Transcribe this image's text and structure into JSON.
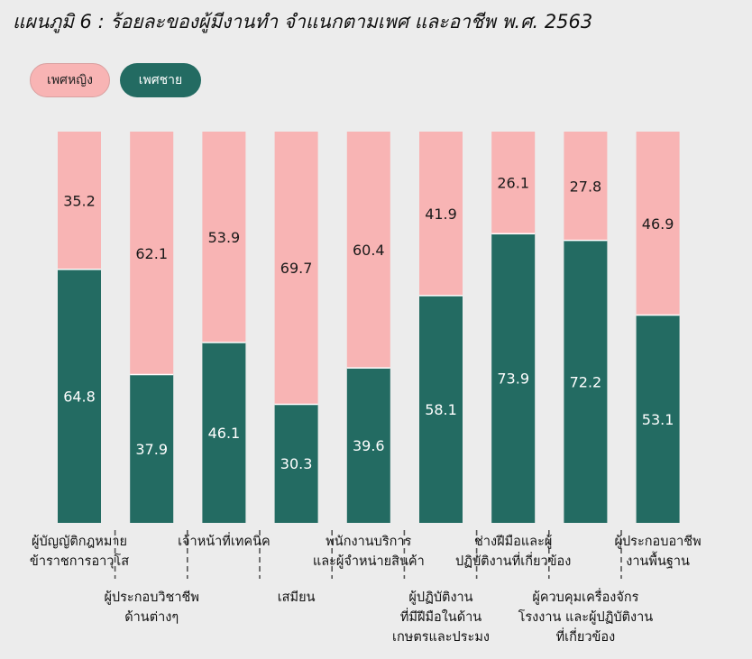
{
  "title": "แผนภูมิ 6 : ร้อยละของผู้มีงานทำ จำแนกตามเพศ และอาชีพ พ.ศ. 2563",
  "legend": {
    "female": "เพศหญิง",
    "male": "เพศชาย"
  },
  "colors": {
    "female": "#f8b4b4",
    "male": "#236b62",
    "background": "#ececec"
  },
  "chart_data": {
    "type": "bar",
    "stacked": true,
    "title": "แผนภูมิ 6 : ร้อยละของผู้มีงานทำ จำแนกตามเพศ และอาชีพ พ.ศ. 2563",
    "ylim": [
      0,
      100
    ],
    "legend_position": "top-left",
    "categories": [
      "ผู้บัญญัติกฎหมาย ข้าราชการอาวุโส",
      "ผู้ประกอบวิชาชีพ ด้านต่างๆ",
      "เจ้าหน้าที่เทคนิค",
      "เสมียน",
      "พนักงานบริการ และผู้จำหน่ายสินค้า",
      "ผู้ปฏิบัติงาน ที่มีฝีมือในด้าน เกษตรและประมง",
      "ช่างฝีมือและผู้ ปฏิบัติงานที่เกี่ยวข้อง",
      "ผู้ควบคุมเครื่องจักร โรงงาน และผู้ปฏิบัติงาน ที่เกี่ยวข้อง",
      "ผู้ประกอบอาชีพ งานพื้นฐาน"
    ],
    "series": [
      {
        "name": "เพศชาย",
        "values": [
          64.8,
          37.9,
          46.1,
          30.3,
          39.6,
          58.1,
          73.9,
          72.2,
          53.1
        ]
      },
      {
        "name": "เพศหญิง",
        "values": [
          35.2,
          62.1,
          53.9,
          69.7,
          60.4,
          41.9,
          26.1,
          27.8,
          46.9
        ]
      }
    ],
    "value_labels": {
      "male": [
        "64.8",
        "37.9",
        "46.1",
        "30.3",
        "39.6",
        "58.1",
        "73.9",
        "72.2",
        "53.1"
      ],
      "female": [
        "35.2",
        "62.1",
        "53.9",
        "69.7",
        "60.4",
        "41.9",
        "26.1",
        "27.8",
        "46.9"
      ]
    },
    "category_label_lines": [
      [
        "ผู้บัญญัติกฎหมาย",
        "ข้าราชการอาวุโส"
      ],
      [
        "ผู้ประกอบวิชาชีพ",
        "ด้านต่างๆ"
      ],
      [
        "เจ้าหน้าที่เทคนิค"
      ],
      [
        "เสมียน"
      ],
      [
        "พนักงานบริการ",
        "และผู้จำหน่ายสินค้า"
      ],
      [
        "ผู้ปฏิบัติงาน",
        "ที่มีฝีมือในด้าน",
        "เกษตรและประมง"
      ],
      [
        "ช่างฝีมือและผู้",
        "ปฏิบัติงานที่เกี่ยวข้อง"
      ],
      [
        "ผู้ควบคุมเครื่องจักร",
        "โรงงาน และผู้ปฏิบัติงาน",
        "ที่เกี่ยวข้อง"
      ],
      [
        "ผู้ประกอบอาชีพ",
        "งานพื้นฐาน"
      ]
    ]
  }
}
